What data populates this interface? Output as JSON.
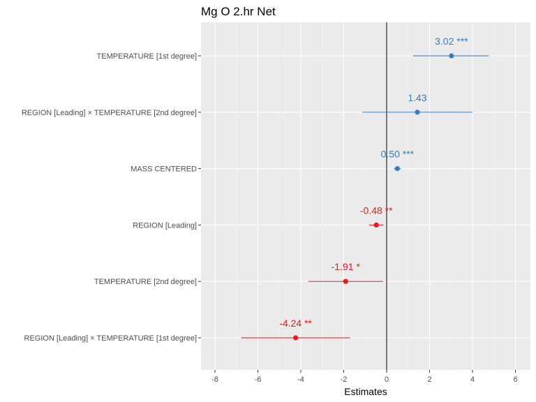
{
  "chart_data": {
    "type": "forest",
    "title": "Mg O 2.hr Net",
    "xlabel": "Estimates",
    "xlim": [
      -8.6,
      7.1
    ],
    "xticks": [
      -8,
      -6,
      -4,
      -2,
      0,
      2,
      4,
      6
    ],
    "grid": true,
    "reference_line": 0,
    "colors": {
      "positive": "#377eb8",
      "negative": "#e41a1c"
    },
    "terms": [
      {
        "label": "TEMPERATURE [1st degree]",
        "estimate": 3.02,
        "ci": [
          1.22,
          4.76
        ],
        "text": "3.02 ***"
      },
      {
        "label": "REGION [Leading] × TEMPERATURE [2nd degree]",
        "estimate": 1.43,
        "ci": [
          -1.13,
          3.99
        ],
        "text": "1.43"
      },
      {
        "label": "MASS CENTERED",
        "estimate": 0.5,
        "ci": [
          0.33,
          0.67
        ],
        "text": "0.50 ***"
      },
      {
        "label": "REGION [Leading]",
        "estimate": -0.48,
        "ci": [
          -0.82,
          -0.14
        ],
        "text": "-0.48 **"
      },
      {
        "label": "TEMPERATURE [2nd degree]",
        "estimate": -1.91,
        "ci": [
          -3.65,
          -0.17
        ],
        "text": "-1.91 *"
      },
      {
        "label": "REGION [Leading] × TEMPERATURE [1st degree]",
        "estimate": -4.24,
        "ci": [
          -6.78,
          -1.7
        ],
        "text": "-4.24 **"
      }
    ]
  }
}
